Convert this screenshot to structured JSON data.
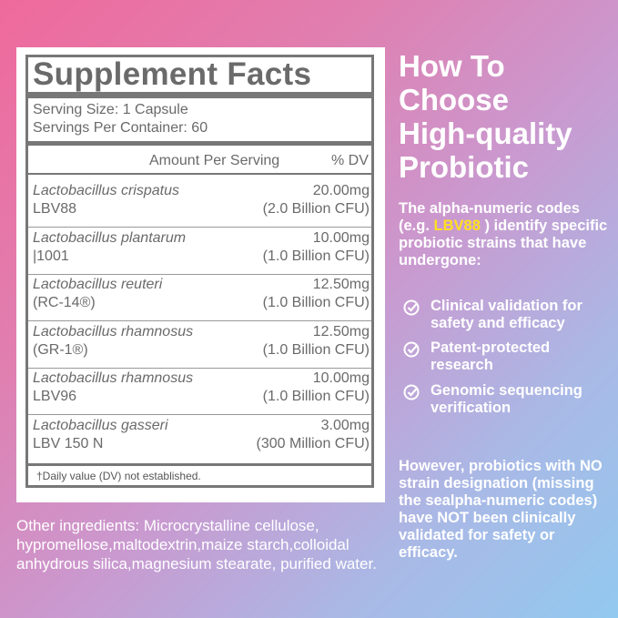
{
  "facts": {
    "title": "Supplement Facts",
    "serving_size": "Serving Size: 1 Capsule",
    "servings_per_container": "Servings Per Container: 60",
    "header_amount": "Amount Per Serving",
    "header_dv": "% DV",
    "rows": [
      {
        "name": "Lactobacillus crispatus",
        "strain": "LBV88",
        "amount": "20.00mg",
        "cfu": "(2.0 Billion CFU)"
      },
      {
        "name": "Lactobacillus plantarum",
        "strain": "|1001",
        "amount": "10.00mg",
        "cfu": "(1.0 Billion CFU)"
      },
      {
        "name": "Lactobacillus reuteri",
        "strain": "(RC-14®)",
        "amount": "12.50mg",
        "cfu": "(1.0 Billion CFU)"
      },
      {
        "name": "Lactobacillus rhamnosus",
        "strain": "(GR-1®)",
        "amount": "12.50mg",
        "cfu": "(1.0 Billion CFU)"
      },
      {
        "name": "Lactobacillus rhamnosus",
        "strain": "LBV96",
        "amount": "10.00mg",
        "cfu": "(1.0 Billion CFU)"
      },
      {
        "name": "Lactobacillus gasseri",
        "strain": "LBV 150 N",
        "amount": "3.00mg",
        "cfu": "(300 Million CFU)"
      }
    ],
    "footnote": "†Daily value (DV) not established."
  },
  "other_ingredients": {
    "label": "Other ingredients:",
    "text": "Microcrystalline cellulose, hypromellose,maltodextrin,maize starch,colloidal anhydrous silica,magnesium stearate, purified water."
  },
  "sidebar": {
    "title_lines": [
      "How To",
      "Choose",
      "High-quality",
      "Probiotic"
    ],
    "intro_before": "The alpha-numeric codes (e.g. ",
    "intro_highlight": "LBV88",
    "intro_after": " ) identify specific probiotic strains that have undergone:",
    "checklist": [
      "Clinical validation for safety and efficacy",
      "Patent-protected research",
      "Genomic sequencing verification"
    ],
    "warning": "However, probiotics with NO strain designation (missing the sealpha-numeric codes) have NOT been clinically validated for safety or efficacy."
  }
}
